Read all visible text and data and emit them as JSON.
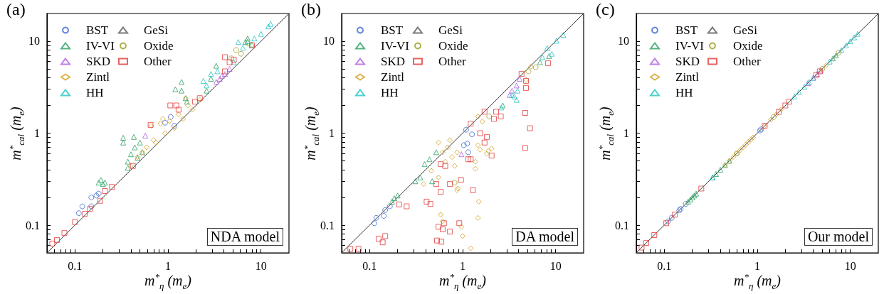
{
  "chart_data": [
    {
      "type": "scatter",
      "title": "(a)",
      "xlabel": "m$^{*}$$_{η}$ (m$_{e}$)",
      "ylabel": "m$^{*}$$_{cal}$ (m$_{e}$)",
      "annotations": [
        "NDA model"
      ],
      "log": "xy",
      "legend": "top left",
      "xlim": [
        0.05,
        20
      ],
      "ylim": [
        0.05,
        20
      ],
      "xticks": [
        {
          "value": 0.06,
          "label": null
        },
        {
          "value": 0.07,
          "label": null
        },
        {
          "value": 0.08,
          "label": null
        },
        {
          "value": 0.09,
          "label": null
        },
        0.1,
        {
          "value": 0.2,
          "label": null
        },
        {
          "value": 0.3,
          "label": null
        },
        {
          "value": 0.4,
          "label": null
        },
        {
          "value": 0.5,
          "label": null
        },
        {
          "value": 0.6,
          "label": null
        },
        {
          "value": 0.7,
          "label": null
        },
        {
          "value": 0.8,
          "label": null
        },
        {
          "value": 0.9,
          "label": null
        },
        1,
        {
          "value": 2,
          "label": null
        },
        {
          "value": 3,
          "label": null
        },
        {
          "value": 4,
          "label": null
        },
        {
          "value": 5,
          "label": null
        },
        {
          "value": 6,
          "label": null
        },
        {
          "value": 7,
          "label": null
        },
        {
          "value": 8,
          "label": null
        },
        {
          "value": 9,
          "label": null
        },
        10
      ],
      "yticks": [
        {
          "value": 0.06,
          "label": null
        },
        {
          "value": 0.07,
          "label": null
        },
        {
          "value": 0.08,
          "label": null
        },
        {
          "value": 0.09,
          "label": null
        },
        0.1,
        {
          "value": 0.2,
          "label": null
        },
        {
          "value": 0.3,
          "label": null
        },
        {
          "value": 0.4,
          "label": null
        },
        {
          "value": 0.5,
          "label": null
        },
        {
          "value": 0.6,
          "label": null
        },
        {
          "value": 0.7,
          "label": null
        },
        {
          "value": 0.8,
          "label": null
        },
        {
          "value": 0.9,
          "label": null
        },
        1,
        {
          "value": 2,
          "label": null
        },
        {
          "value": 3,
          "label": null
        },
        {
          "value": 4,
          "label": null
        },
        {
          "value": 5,
          "label": null
        },
        {
          "value": 6,
          "label": null
        },
        {
          "value": 7,
          "label": null
        },
        {
          "value": 8,
          "label": null
        },
        {
          "value": 9,
          "label": null
        },
        10
      ],
      "series": [
        {
          "type": "line",
          "marker": "none",
          "color": "#333333",
          "x": [
            0.05,
            20
          ],
          "values": [
            0.05,
            20
          ]
        },
        {
          "name": "BST",
          "color": "#3a66d0",
          "marker": "circle",
          "x": [
            0.11,
            0.12,
            0.15,
            0.17,
            0.18,
            0.15,
            1.07,
            1.17,
            0.93
          ],
          "values": [
            0.135,
            0.16,
            0.2,
            0.21,
            0.22,
            0.16,
            1.5,
            1.2,
            1.3
          ]
        },
        {
          "name": "IV-VI",
          "color": "#2aa060",
          "marker": "triangle",
          "x": [
            0.19,
            0.21,
            0.18,
            0.2,
            0.33,
            0.33,
            0.43,
            0.4,
            0.44,
            0.5,
            0.53,
            0.37,
            0.47,
            0.37,
            1.4,
            1.2,
            1.4,
            1.6,
            1.55,
            3.3,
            2.9,
            2.6,
            6.8,
            8,
            7.2
          ],
          "values": [
            0.31,
            0.29,
            0.29,
            0.28,
            0.89,
            0.79,
            0.91,
            0.59,
            0.7,
            0.79,
            0.62,
            0.49,
            0.54,
            0.42,
            3.6,
            3,
            2.9,
            2.2,
            2.4,
            5.4,
            3.9,
            2.9,
            9.8,
            9.2,
            10.7
          ]
        },
        {
          "name": "SKD",
          "color": "#b05ee0",
          "marker": "triangle",
          "x": [
            0.57,
            3.6,
            3.8,
            4.6,
            4.1,
            3.3
          ],
          "values": [
            0.94,
            3.9,
            4.2,
            5,
            4.4,
            3.6
          ]
        },
        {
          "name": "Zintl",
          "color": "#d4a020",
          "marker": "diamond",
          "x": [
            0.7,
            0.83,
            0.88,
            1.04,
            0.66,
            0.93,
            1.3,
            1.55,
            1.64,
            2.2,
            0.53,
            0.59,
            0.74,
            1.17,
            1.46,
            1.84,
            0.4,
            0.47
          ],
          "values": [
            0.84,
            1.27,
            1.43,
            1.35,
            1.2,
            1,
            1.6,
            2.4,
            2,
            2.3,
            0.62,
            0.7,
            0.79,
            1.13,
            1.43,
            1.8,
            0.44,
            0.55
          ]
        },
        {
          "name": "HH",
          "color": "#20c4c4",
          "marker": "triangle",
          "x": [
            2.4,
            2.9,
            3.4,
            5.1,
            5.7,
            7.2,
            8.5,
            10,
            12,
            12.7,
            6.4,
            2.6
          ],
          "values": [
            3.7,
            4.4,
            4.7,
            5.9,
            9.8,
            10,
            10.7,
            12,
            14.5,
            15.4,
            8.5,
            3.3
          ]
        },
        {
          "name": "GeSi",
          "color": "#555555",
          "marker": "triangle"
        },
        {
          "name": "Oxide",
          "color": "#9c9a20",
          "marker": "circle",
          "x": [
            5.4,
            7.2,
            4.8,
            6.1
          ],
          "values": [
            8,
            9.5,
            6.5,
            7.3
          ]
        },
        {
          "name": "Other",
          "color": "#e23b3b",
          "marker": "square",
          "x": [
            0.057,
            0.064,
            0.077,
            0.1,
            0.128,
            0.145,
            0.187,
            0.21,
            0.25,
            0.42,
            0.65,
            1.06,
            1.23,
            1.3,
            1.95,
            2.2,
            4.1,
            4.6,
            5.1,
            4.1,
            8
          ],
          "values": [
            0.063,
            0.069,
            0.082,
            0.108,
            0.133,
            0.15,
            0.184,
            0.235,
            0.26,
            0.44,
            1.23,
            2,
            2,
            1.8,
            2.2,
            2.4,
            6.7,
            5.9,
            6.3,
            4.7,
            9
          ]
        }
      ]
    },
    {
      "type": "scatter",
      "title": "(b)",
      "xlabel": "m$^{*}$$_{η}$ (m$_{e}$)",
      "ylabel": "m$^{*}$$_{cal}$ (m$_{e}$)",
      "annotations": [
        "DA model"
      ],
      "log": "xy",
      "legend": "top left",
      "xlim": [
        0.05,
        20
      ],
      "ylim": [
        0.05,
        20
      ],
      "xticks": [
        {
          "value": 0.06,
          "label": null
        },
        {
          "value": 0.07,
          "label": null
        },
        {
          "value": 0.08,
          "label": null
        },
        {
          "value": 0.09,
          "label": null
        },
        0.1,
        {
          "value": 0.2,
          "label": null
        },
        {
          "value": 0.3,
          "label": null
        },
        {
          "value": 0.4,
          "label": null
        },
        {
          "value": 0.5,
          "label": null
        },
        {
          "value": 0.6,
          "label": null
        },
        {
          "value": 0.7,
          "label": null
        },
        {
          "value": 0.8,
          "label": null
        },
        {
          "value": 0.9,
          "label": null
        },
        1,
        {
          "value": 2,
          "label": null
        },
        {
          "value": 3,
          "label": null
        },
        {
          "value": 4,
          "label": null
        },
        {
          "value": 5,
          "label": null
        },
        {
          "value": 6,
          "label": null
        },
        {
          "value": 7,
          "label": null
        },
        {
          "value": 8,
          "label": null
        },
        {
          "value": 9,
          "label": null
        },
        10
      ],
      "yticks": [
        {
          "value": 0.06,
          "label": null
        },
        {
          "value": 0.07,
          "label": null
        },
        {
          "value": 0.08,
          "label": null
        },
        {
          "value": 0.09,
          "label": null
        },
        0.1,
        {
          "value": 0.2,
          "label": null
        },
        {
          "value": 0.3,
          "label": null
        },
        {
          "value": 0.4,
          "label": null
        },
        {
          "value": 0.5,
          "label": null
        },
        {
          "value": 0.6,
          "label": null
        },
        {
          "value": 0.7,
          "label": null
        },
        {
          "value": 0.8,
          "label": null
        },
        {
          "value": 0.9,
          "label": null
        },
        1,
        {
          "value": 2,
          "label": null
        },
        {
          "value": 3,
          "label": null
        },
        {
          "value": 4,
          "label": null
        },
        {
          "value": 5,
          "label": null
        },
        {
          "value": 6,
          "label": null
        },
        {
          "value": 7,
          "label": null
        },
        {
          "value": 8,
          "label": null
        },
        {
          "value": 9,
          "label": null
        },
        10
      ],
      "series": [
        {
          "type": "line",
          "marker": "none",
          "color": "#333333",
          "x": [
            0.05,
            20
          ],
          "values": [
            0.05,
            20
          ]
        },
        {
          "name": "BST",
          "color": "#3a66d0",
          "marker": "circle",
          "x": [
            0.112,
            0.118,
            0.142,
            0.147,
            0.165,
            1.09,
            1.12,
            1.15,
            1.26,
            1.03
          ],
          "values": [
            0.105,
            0.12,
            0.126,
            0.146,
            0.16,
            1.09,
            0.77,
            0.62,
            0.97,
            0.74
          ]
        },
        {
          "name": "IV-VI",
          "color": "#2aa060",
          "marker": "triangle",
          "x": [
            0.184,
            0.2,
            0.174,
            0.31,
            0.35,
            0.47,
            0.39,
            0.44,
            0.52,
            2.7,
            6.8,
            8.5
          ],
          "values": [
            0.196,
            0.21,
            0.18,
            0.3,
            0.33,
            0.3,
            0.46,
            0.52,
            0.62,
            2,
            5.9,
            6.9
          ]
        },
        {
          "name": "SKD",
          "color": "#b05ee0",
          "marker": "triangle",
          "x": [
            0.97,
            3.4,
            3.8,
            4.1,
            3.2
          ],
          "values": [
            0.59,
            2.9,
            3.3,
            3.9,
            2.6
          ]
        },
        {
          "name": "Zintl",
          "color": "#d4a020",
          "marker": "diamond",
          "x": [
            0.61,
            0.69,
            0.77,
            0.87,
            0.65,
            0.82,
            0.55,
            0.73,
            0.46,
            0.38,
            0.55,
            0.58,
            0.61,
            0.87,
            0.89,
            0.97,
            1,
            1.22,
            1.49,
            1.46,
            1.37,
            1.37,
            1.46,
            1.54,
            1.88,
            2.05,
            1.82,
            4.8,
            5.4,
            1.63,
            1.46
          ],
          "values": [
            0.62,
            0.7,
            0.55,
            0.62,
            0.49,
            0.44,
            0.79,
            0.84,
            0.39,
            0.28,
            0.33,
            0.13,
            0.11,
            0.24,
            0.25,
            0.096,
            0.076,
            0.056,
            0.18,
            0.12,
            0.41,
            0.49,
            0.74,
            0.66,
            0.64,
            0.68,
            0.6,
            3.8,
            5.3,
            1.34,
            1.52
          ]
        },
        {
          "name": "HH",
          "color": "#20c4c4",
          "marker": "triangle",
          "x": [
            3.8,
            3.9,
            3.6,
            8.1,
            10.2,
            12.1,
            9.1,
            7.2,
            2.6,
            3.4
          ],
          "values": [
            2.3,
            2.9,
            2.5,
            8.4,
            10.1,
            11.7,
            7.3,
            6.7,
            1.9,
            2.6
          ]
        },
        {
          "name": "GeSi",
          "color": "#555555",
          "marker": "triangle"
        },
        {
          "name": "Oxide",
          "color": "#9c9a20",
          "marker": "circle",
          "x": [
            0.82,
            5.1,
            6.1,
            1.93
          ],
          "values": [
            0.29,
            4.7,
            5.2,
            1.52
          ]
        },
        {
          "name": "Other",
          "color": "#e23b3b",
          "marker": "square",
          "x": [
            0.062,
            0.076,
            0.125,
            0.147,
            0.138,
            0.207,
            0.25,
            0.41,
            0.45,
            0.58,
            0.55,
            0.61,
            0.63,
            0.53,
            0.59,
            0.73,
            0.92,
            0.96,
            0.73,
            0.52,
            0.58,
            0.65,
            1.15,
            1.29,
            1.22,
            1.54,
            1.72,
            1.82,
            2.05,
            2.17,
            2.29,
            2.57,
            4.8,
            4.7,
            5.3,
            4.7,
            8.3,
            4.3,
            4.8,
            1.22,
            1.72
          ],
          "values": [
            0.055,
            0.055,
            0.071,
            0.076,
            0.065,
            0.168,
            0.16,
            0.18,
            0.17,
            0.23,
            0.096,
            0.09,
            0.105,
            0.068,
            0.066,
            0.085,
            0.105,
            0.31,
            0.28,
            0.28,
            0.46,
            0.44,
            0.52,
            0.24,
            0.52,
            1,
            0.79,
            0.91,
            0.57,
            1.43,
            1.71,
            1.52,
            3.1,
            1.66,
            1.13,
            0.69,
            5.75,
            4.4,
            3.7,
            1.27,
            1.71
          ]
        }
      ]
    },
    {
      "type": "scatter",
      "title": "(c)",
      "xlabel": "m$^{*}$$_{η}$ (m$_{e}$)",
      "ylabel": "m$^{*}$$_{cal}$ (m$_{e}$)",
      "annotations": [
        "Our model"
      ],
      "log": "xy",
      "legend": "top left",
      "xlim": [
        0.05,
        20
      ],
      "ylim": [
        0.05,
        20
      ],
      "xticks": [
        {
          "value": 0.06,
          "label": null
        },
        {
          "value": 0.07,
          "label": null
        },
        {
          "value": 0.08,
          "label": null
        },
        {
          "value": 0.09,
          "label": null
        },
        0.1,
        {
          "value": 0.2,
          "label": null
        },
        {
          "value": 0.3,
          "label": null
        },
        {
          "value": 0.4,
          "label": null
        },
        {
          "value": 0.5,
          "label": null
        },
        {
          "value": 0.6,
          "label": null
        },
        {
          "value": 0.7,
          "label": null
        },
        {
          "value": 0.8,
          "label": null
        },
        {
          "value": 0.9,
          "label": null
        },
        1,
        {
          "value": 2,
          "label": null
        },
        {
          "value": 3,
          "label": null
        },
        {
          "value": 4,
          "label": null
        },
        {
          "value": 5,
          "label": null
        },
        {
          "value": 6,
          "label": null
        },
        {
          "value": 7,
          "label": null
        },
        {
          "value": 8,
          "label": null
        },
        {
          "value": 9,
          "label": null
        },
        10
      ],
      "yticks": [
        {
          "value": 0.06,
          "label": null
        },
        {
          "value": 0.07,
          "label": null
        },
        {
          "value": 0.08,
          "label": null
        },
        {
          "value": 0.09,
          "label": null
        },
        0.1,
        {
          "value": 0.2,
          "label": null
        },
        {
          "value": 0.3,
          "label": null
        },
        {
          "value": 0.4,
          "label": null
        },
        {
          "value": 0.5,
          "label": null
        },
        {
          "value": 0.6,
          "label": null
        },
        {
          "value": 0.7,
          "label": null
        },
        {
          "value": 0.8,
          "label": null
        },
        {
          "value": 0.9,
          "label": null
        },
        1,
        {
          "value": 2,
          "label": null
        },
        {
          "value": 3,
          "label": null
        },
        {
          "value": 4,
          "label": null
        },
        {
          "value": 5,
          "label": null
        },
        {
          "value": 6,
          "label": null
        },
        {
          "value": 7,
          "label": null
        },
        {
          "value": 8,
          "label": null
        },
        {
          "value": 9,
          "label": null
        },
        10
      ],
      "series": [
        {
          "type": "line",
          "marker": "none",
          "color": "#333333",
          "x": [
            0.05,
            20
          ],
          "values": [
            0.05,
            20
          ]
        },
        {
          "name": "BST",
          "color": "#3a66d0",
          "marker": "circle",
          "x": [
            0.11,
            0.12,
            0.145,
            0.15,
            0.17,
            1.07,
            1.1
          ],
          "values": [
            0.11,
            0.12,
            0.145,
            0.15,
            0.17,
            1.07,
            1.1
          ]
        },
        {
          "name": "IV-VI",
          "color": "#2aa060",
          "marker": "triangle",
          "x": [
            0.18,
            0.19,
            0.2,
            0.21,
            0.22,
            0.33,
            0.36,
            0.4,
            0.45,
            0.5,
            6.5,
            7
          ],
          "values": [
            0.18,
            0.19,
            0.2,
            0.21,
            0.22,
            0.33,
            0.36,
            0.4,
            0.45,
            0.5,
            6.5,
            7
          ]
        },
        {
          "name": "SKD",
          "color": "#b05ee0",
          "marker": "triangle",
          "x": [
            3.5,
            4,
            4.4,
            4.8
          ],
          "values": [
            3.5,
            4,
            4.4,
            4.8
          ]
        },
        {
          "name": "Zintl",
          "color": "#d4a020",
          "marker": "diamond",
          "x": [
            0.45,
            0.5,
            0.55,
            0.6,
            0.65,
            0.7,
            0.75,
            0.8,
            0.85,
            0.9,
            1.2,
            1.4,
            1.6,
            1.8,
            5.5
          ],
          "values": [
            0.45,
            0.5,
            0.55,
            0.6,
            0.65,
            0.7,
            0.75,
            0.8,
            0.85,
            0.9,
            1.2,
            1.4,
            1.6,
            1.8,
            5.5
          ]
        },
        {
          "name": "HH",
          "color": "#20c4c4",
          "marker": "triangle",
          "x": [
            0.33,
            2.5,
            2.8,
            3.2,
            3.6,
            4,
            6,
            8,
            9,
            10,
            11,
            12
          ],
          "values": [
            0.33,
            2.5,
            2.8,
            3.2,
            3.6,
            4,
            6,
            8,
            9,
            10,
            11,
            12
          ]
        },
        {
          "name": "GeSi",
          "color": "#555555",
          "marker": "triangle"
        },
        {
          "name": "Oxide",
          "color": "#9c9a20",
          "marker": "circle",
          "x": [
            0.6,
            1.5,
            5,
            7.5
          ],
          "values": [
            0.6,
            1.5,
            5,
            7.5
          ]
        },
        {
          "name": "Other",
          "color": "#e23b3b",
          "marker": "square",
          "x": [
            0.057,
            0.064,
            0.078,
            0.105,
            0.13,
            0.25,
            1.2,
            1.7,
            2,
            2.2,
            4.3,
            4.7
          ],
          "values": [
            0.057,
            0.064,
            0.078,
            0.105,
            0.13,
            0.25,
            1.2,
            1.7,
            2,
            2.2,
            4.3,
            4.7
          ]
        }
      ]
    }
  ]
}
